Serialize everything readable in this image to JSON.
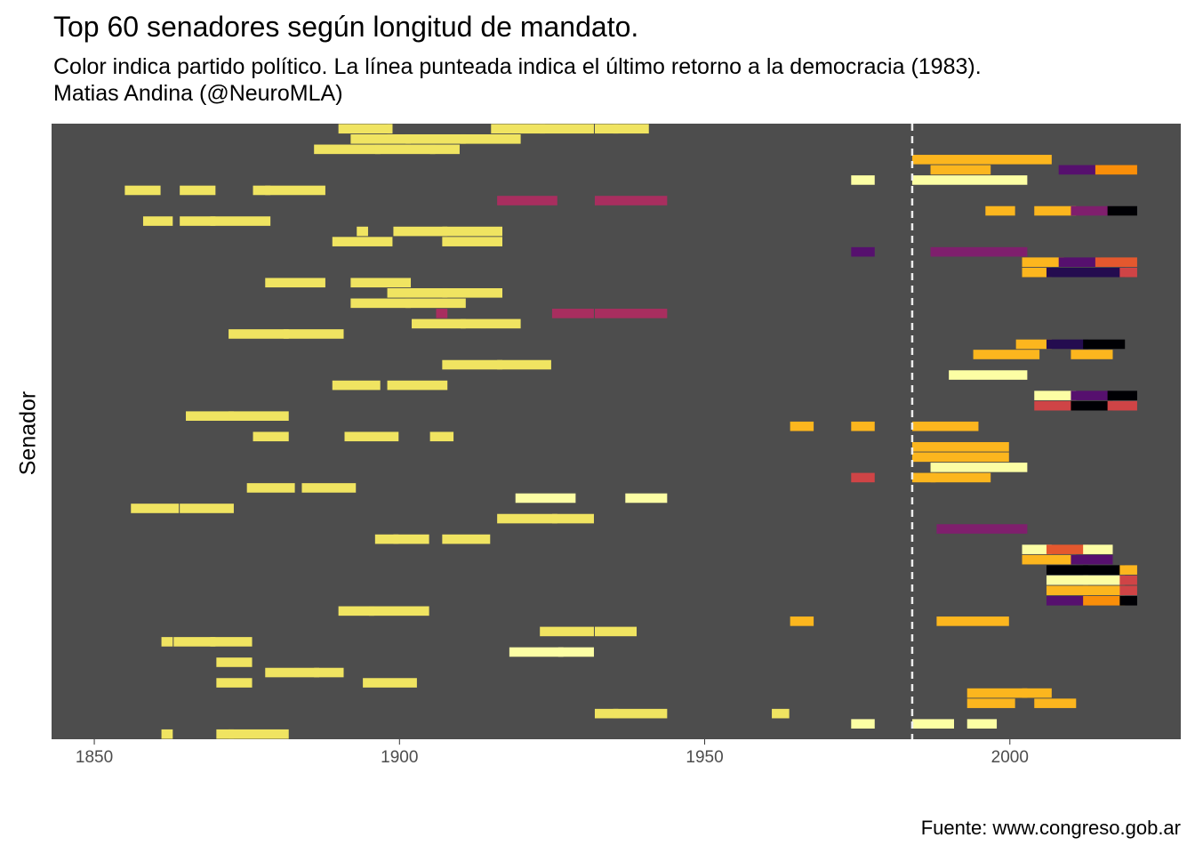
{
  "title": "Top 60 senadores según longitud de mandato.",
  "subtitle_line1": "Color indica partido político. La línea punteada indica el último retorno a la democracia (1983).",
  "subtitle_line2": "Matias Andina (@NeuroMLA)",
  "caption": "Fuente: www.congreso.gob.ar",
  "colors": {
    "panel": "#4d4d4d",
    "reference_line": "#eeeeee",
    "palette": {
      "Y": "#f0e461",
      "L": "#fcfea4",
      "A": "#fcb61e",
      "O": "#f98e09",
      "R": "#e4582e",
      "C": "#cf4446",
      "M": "#a82e5f",
      "P": "#7f1f6d",
      "V": "#56106e",
      "D": "#240c4f",
      "K": "#000004"
    }
  },
  "chart_data": {
    "type": "gantt",
    "title": "Top 60 senadores según longitud de mandato.",
    "xlabel": "",
    "ylabel": "Senador",
    "xlim": [
      1843,
      2028
    ],
    "x_ticks": [
      1850,
      1900,
      1950,
      2000
    ],
    "reference_line": {
      "x": 1983,
      "style": "dashed"
    },
    "grid": false,
    "legend": "none",
    "rows": [
      [
        [
          1890,
          1898,
          "Y"
        ],
        [
          1898,
          1898,
          "Y"
        ],
        [
          1915,
          1923,
          "Y"
        ],
        [
          1923,
          1931,
          "Y"
        ],
        [
          1932,
          1935,
          "Y"
        ],
        [
          1935,
          1940,
          "Y"
        ]
      ],
      [
        [
          1892,
          1901,
          "Y"
        ],
        [
          1901,
          1910,
          "Y"
        ],
        [
          1910,
          1919,
          "Y"
        ]
      ],
      [
        [
          1886,
          1896,
          "Y"
        ],
        [
          1896,
          1905,
          "Y"
        ],
        [
          1905,
          1909,
          "Y"
        ]
      ],
      [
        [
          1984,
          2006,
          "A"
        ]
      ],
      [
        [
          1987,
          1996,
          "A"
        ],
        [
          2008,
          2014,
          "V"
        ],
        [
          2014,
          2020,
          "O"
        ]
      ],
      [
        [
          1974,
          1977,
          "L"
        ],
        [
          1984,
          2002,
          "L"
        ]
      ],
      [
        [
          1855,
          1860,
          "Y"
        ],
        [
          1864,
          1869,
          "Y"
        ],
        [
          1876,
          1878,
          "Y"
        ],
        [
          1878,
          1887,
          "Y"
        ]
      ],
      [
        [
          1916,
          1925,
          "M"
        ],
        [
          1932,
          1943,
          "M"
        ]
      ],
      [
        [
          1996,
          2000,
          "A"
        ],
        [
          2004,
          2010,
          "A"
        ],
        [
          2010,
          2016,
          "P"
        ],
        [
          2016,
          2020,
          "K"
        ]
      ],
      [
        [
          1858,
          1862,
          "Y"
        ],
        [
          1864,
          1869,
          "Y"
        ],
        [
          1869,
          1878,
          "Y"
        ]
      ],
      [
        [
          1893,
          1894,
          "Y"
        ],
        [
          1899,
          1907,
          "Y"
        ],
        [
          1907,
          1916,
          "Y"
        ]
      ],
      [
        [
          1889,
          1898,
          "Y"
        ],
        [
          1907,
          1916,
          "Y"
        ]
      ],
      [
        [
          1974,
          1977,
          "V"
        ],
        [
          1987,
          2002,
          "P"
        ]
      ],
      [
        [
          2002,
          2008,
          "A"
        ],
        [
          2008,
          2014,
          "V"
        ],
        [
          2014,
          2020,
          "R"
        ]
      ],
      [
        [
          2002,
          2006,
          "A"
        ],
        [
          2006,
          2018,
          "D"
        ],
        [
          2018,
          2020,
          "C"
        ]
      ],
      [
        [
          1878,
          1887,
          "Y"
        ],
        [
          1892,
          1901,
          "Y"
        ]
      ],
      [
        [
          1898,
          1907,
          "Y"
        ],
        [
          1907,
          1916,
          "Y"
        ]
      ],
      [
        [
          1892,
          1901,
          "Y"
        ],
        [
          1901,
          1910,
          "Y"
        ]
      ],
      [
        [
          1906,
          1907,
          "M"
        ],
        [
          1925,
          1931,
          "M"
        ],
        [
          1932,
          1943,
          "M"
        ]
      ],
      [
        [
          1902,
          1910,
          "Y"
        ],
        [
          1910,
          1919,
          "Y"
        ]
      ],
      [
        [
          1872,
          1881,
          "Y"
        ],
        [
          1881,
          1890,
          "Y"
        ]
      ],
      [
        [
          2001,
          2006,
          "A"
        ],
        [
          2006,
          2012,
          "D"
        ],
        [
          2012,
          2018,
          "K"
        ]
      ],
      [
        [
          1994,
          2004,
          "A"
        ],
        [
          2010,
          2016,
          "A"
        ]
      ],
      [
        [
          1907,
          1916,
          "Y"
        ],
        [
          1916,
          1924,
          "Y"
        ]
      ],
      [
        [
          1990,
          2002,
          "L"
        ]
      ],
      [
        [
          1889,
          1896,
          "Y"
        ],
        [
          1898,
          1907,
          "Y"
        ]
      ],
      [
        [
          2004,
          2010,
          "L"
        ],
        [
          2010,
          2016,
          "V"
        ],
        [
          2016,
          2020,
          "K"
        ]
      ],
      [
        [
          2004,
          2010,
          "C"
        ],
        [
          2010,
          2016,
          "K"
        ],
        [
          2016,
          2020,
          "C"
        ]
      ],
      [
        [
          1865,
          1872,
          "Y"
        ],
        [
          1872,
          1881,
          "Y"
        ]
      ],
      [
        [
          1964,
          1967,
          "A"
        ],
        [
          1974,
          1977,
          "A"
        ],
        [
          1984,
          1994,
          "A"
        ]
      ],
      [
        [
          1876,
          1881,
          "Y"
        ],
        [
          1891,
          1899,
          "Y"
        ],
        [
          1905,
          1908,
          "Y"
        ]
      ],
      [
        [
          1984,
          1999,
          "A"
        ]
      ],
      [
        [
          1984,
          1999,
          "A"
        ]
      ],
      [
        [
          1987,
          2002,
          "L"
        ]
      ],
      [
        [
          1974,
          1977,
          "C"
        ],
        [
          1984,
          1987,
          "A"
        ],
        [
          1987,
          1996,
          "A"
        ]
      ],
      [
        [
          1875,
          1882,
          "Y"
        ],
        [
          1884,
          1892,
          "Y"
        ]
      ],
      [
        [
          1919,
          1928,
          "L"
        ],
        [
          1937,
          1943,
          "L"
        ]
      ],
      [
        [
          1856,
          1863,
          "Y"
        ],
        [
          1864,
          1872,
          "Y"
        ]
      ],
      [
        [
          1916,
          1925,
          "Y"
        ],
        [
          1925,
          1931,
          "Y"
        ]
      ],
      [
        [
          1988,
          2002,
          "P"
        ]
      ],
      [
        [
          1896,
          1899,
          "Y"
        ],
        [
          1899,
          1904,
          "Y"
        ],
        [
          1907,
          1914,
          "Y"
        ]
      ],
      [
        [
          2002,
          2006,
          "L"
        ],
        [
          2006,
          2012,
          "R"
        ],
        [
          2012,
          2016,
          "L"
        ]
      ],
      [
        [
          2002,
          2010,
          "A"
        ],
        [
          2010,
          2016,
          "V"
        ]
      ],
      [
        [
          2006,
          2012,
          "K"
        ],
        [
          2012,
          2018,
          "K"
        ],
        [
          2018,
          2020,
          "A"
        ]
      ],
      [
        [
          2006,
          2012,
          "L"
        ],
        [
          2012,
          2018,
          "L"
        ],
        [
          2018,
          2020,
          "C"
        ]
      ],
      [
        [
          2006,
          2012,
          "A"
        ],
        [
          2012,
          2018,
          "A"
        ],
        [
          2018,
          2020,
          "C"
        ]
      ],
      [
        [
          2006,
          2012,
          "V"
        ],
        [
          2012,
          2018,
          "O"
        ],
        [
          2018,
          2020,
          "K"
        ]
      ],
      [
        [
          1890,
          1895,
          "Y"
        ],
        [
          1895,
          1904,
          "Y"
        ]
      ],
      [
        [
          1964,
          1967,
          "A"
        ],
        [
          1988,
          1999,
          "A"
        ]
      ],
      [
        [
          1923,
          1931,
          "Y"
        ],
        [
          1932,
          1938,
          "Y"
        ]
      ],
      [
        [
          1861,
          1862,
          "Y"
        ],
        [
          1863,
          1869,
          "Y"
        ],
        [
          1869,
          1875,
          "Y"
        ]
      ],
      [
        [
          1918,
          1926,
          "L"
        ],
        [
          1926,
          1931,
          "L"
        ]
      ],
      [
        [
          1870,
          1875,
          "Y"
        ]
      ],
      [
        [
          1878,
          1886,
          "Y"
        ],
        [
          1886,
          1890,
          "Y"
        ]
      ],
      [
        [
          1870,
          1875,
          "Y"
        ],
        [
          1894,
          1902,
          "Y"
        ]
      ],
      [
        [
          1993,
          2002,
          "A"
        ],
        [
          2002,
          2006,
          "A"
        ]
      ],
      [
        [
          1993,
          2000,
          "A"
        ],
        [
          2004,
          2010,
          "A"
        ]
      ],
      [
        [
          1932,
          1935,
          "Y"
        ],
        [
          1935,
          1943,
          "Y"
        ],
        [
          1961,
          1963,
          "Y"
        ]
      ],
      [
        [
          1974,
          1977,
          "L"
        ],
        [
          1984,
          1990,
          "L"
        ],
        [
          1993,
          1997,
          "L"
        ]
      ],
      [
        [
          1861,
          1862,
          "Y"
        ],
        [
          1870,
          1872,
          "Y"
        ],
        [
          1872,
          1881,
          "Y"
        ]
      ]
    ]
  }
}
